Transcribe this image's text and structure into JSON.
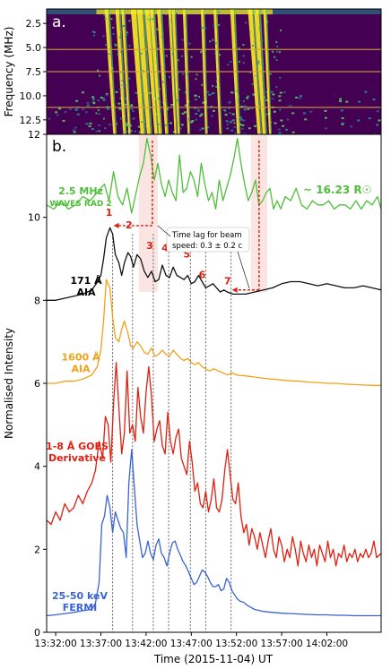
{
  "chart_data": [
    {
      "type": "heatmap",
      "panel_label": "a.",
      "ylabel": "Frequency (MHz)",
      "y_ticks": [
        "2.5",
        "5.0",
        "7.5",
        "10.0",
        "12.5"
      ],
      "y_tick_values": [
        2.5,
        5.0,
        7.5,
        10.0,
        12.5
      ],
      "ylim": [
        14.0,
        1.0
      ],
      "xlim_minutes_after_1331": [
        0,
        37
      ],
      "orange_line_frequencies": [
        5.2,
        7.5,
        11.2
      ],
      "colormap": {
        "low": "#440154",
        "mid1": "#3b528b",
        "mid2": "#21918c",
        "mid3": "#5ec962",
        "high": "#fde725"
      },
      "bursts_minutes": [
        {
          "t": 6.6,
          "len": 0.9,
          "w": 0.4
        },
        {
          "t": 7.8,
          "len": 0.8,
          "w": 0.4
        },
        {
          "t": 8.4,
          "len": 0.75,
          "w": 0.3
        },
        {
          "t": 9.6,
          "len": 1.0,
          "w": 0.6
        },
        {
          "t": 10.3,
          "len": 1.0,
          "w": 0.6
        },
        {
          "t": 11.1,
          "len": 1.0,
          "w": 0.5
        },
        {
          "t": 11.6,
          "len": 0.95,
          "w": 0.4
        },
        {
          "t": 12.4,
          "len": 0.85,
          "w": 0.4
        },
        {
          "t": 13.6,
          "len": 0.65,
          "w": 0.3
        },
        {
          "t": 14.0,
          "len": 0.6,
          "w": 0.3
        },
        {
          "t": 15.2,
          "len": 0.5,
          "w": 0.3
        },
        {
          "t": 17.2,
          "len": 0.45,
          "w": 0.3
        },
        {
          "t": 18.6,
          "len": 0.6,
          "w": 0.3
        },
        {
          "t": 20.5,
          "len": 0.7,
          "w": 0.4
        },
        {
          "t": 22.5,
          "len": 1.0,
          "w": 0.5
        },
        {
          "t": 23.2,
          "len": 0.85,
          "w": 0.5
        },
        {
          "t": 24.1,
          "len": 0.6,
          "w": 0.3
        }
      ]
    },
    {
      "type": "line",
      "panel_label": "b.",
      "xlabel": "Time (2015-11-04) UT",
      "ylabel": "Normalised Intensity",
      "x_ticks": [
        "13:32:00",
        "13:37:00",
        "13:42:00",
        "13:47:00",
        "13:52:00",
        "13:57:00",
        "14:02:00"
      ],
      "x_tick_minutes": [
        1,
        6,
        11,
        16,
        21,
        26,
        31
      ],
      "xlim_minutes_after_1331": [
        0,
        37
      ],
      "y_ticks": [
        "0",
        "2",
        "4",
        "6",
        "8",
        "10",
        "12"
      ],
      "ylim": [
        0,
        12
      ],
      "series": [
        {
          "name": "WAVES RAD 2",
          "label_lines": [
            "2.5 MHz",
            "WAVES RAD 2"
          ],
          "color": "#4fbf3a",
          "x": [
            0,
            0.8,
            1.6,
            2.4,
            3.2,
            4.0,
            4.8,
            5.6,
            6.4,
            6.9,
            7.4,
            7.9,
            8.4,
            8.9,
            9.4,
            9.9,
            10.3,
            10.7,
            11.1,
            11.5,
            11.9,
            12.3,
            12.7,
            13.1,
            13.5,
            13.9,
            14.3,
            14.7,
            15.1,
            15.5,
            15.9,
            16.3,
            16.7,
            17.1,
            17.5,
            17.9,
            18.3,
            18.7,
            19.1,
            19.5,
            19.9,
            20.3,
            20.7,
            21.1,
            21.5,
            21.9,
            22.3,
            22.7,
            23.1,
            23.5,
            23.9,
            24.3,
            24.7,
            25.1,
            25.5,
            25.9,
            26.4,
            27.0,
            27.6,
            28.2,
            28.8,
            29.4,
            30.0,
            30.6,
            31.2,
            31.8,
            32.4,
            33.0,
            33.6,
            34.2,
            34.8,
            35.4,
            36.0,
            36.6,
            37.0
          ],
          "values": [
            10.3,
            10.2,
            10.4,
            10.2,
            10.3,
            10.5,
            10.4,
            10.6,
            10.8,
            10.4,
            11.1,
            10.5,
            10.3,
            10.7,
            10.1,
            10.6,
            11.0,
            11.3,
            11.9,
            11.5,
            10.9,
            11.3,
            10.8,
            10.5,
            10.9,
            10.6,
            10.4,
            11.5,
            10.6,
            10.7,
            11.1,
            10.9,
            10.5,
            11.3,
            10.8,
            10.4,
            10.6,
            10.2,
            10.9,
            10.4,
            10.7,
            11.0,
            11.4,
            11.9,
            11.3,
            10.8,
            10.4,
            10.6,
            10.9,
            10.3,
            10.4,
            10.6,
            10.7,
            10.2,
            10.4,
            10.2,
            10.5,
            10.4,
            10.7,
            10.3,
            10.2,
            10.4,
            10.3,
            10.3,
            10.4,
            10.2,
            10.3,
            10.3,
            10.2,
            10.4,
            10.2,
            10.4,
            10.3,
            10.5,
            10.2
          ]
        },
        {
          "name": "AIA",
          "label_lines": [
            "171 Å",
            "AIA"
          ],
          "color": "#111111",
          "x": [
            0,
            1,
            2,
            3,
            4,
            5,
            5.5,
            6.0,
            6.3,
            6.6,
            7.0,
            7.3,
            7.6,
            8.0,
            8.3,
            8.6,
            9.0,
            9.3,
            9.6,
            10.0,
            10.4,
            10.8,
            11.2,
            11.6,
            12.0,
            12.4,
            12.8,
            13.2,
            13.6,
            14.0,
            14.4,
            14.8,
            15.2,
            15.6,
            16.0,
            16.4,
            16.8,
            17.2,
            17.6,
            18.0,
            18.4,
            18.8,
            19.2,
            19.6,
            20.0,
            20.6,
            21.2,
            22,
            23,
            24,
            25,
            26,
            27,
            28,
            29,
            30,
            31,
            32,
            33,
            34,
            35,
            36,
            37
          ],
          "values": [
            8.0,
            8.0,
            8.05,
            8.1,
            8.15,
            8.25,
            8.4,
            8.6,
            9.0,
            9.5,
            9.75,
            9.6,
            9.1,
            8.9,
            8.6,
            8.9,
            9.15,
            9.05,
            8.8,
            9.1,
            9.0,
            8.7,
            8.55,
            8.7,
            8.45,
            8.5,
            8.85,
            8.6,
            8.55,
            8.8,
            8.6,
            8.55,
            8.5,
            8.6,
            8.4,
            8.45,
            8.6,
            8.45,
            8.3,
            8.35,
            8.4,
            8.3,
            8.2,
            8.25,
            8.2,
            8.15,
            8.15,
            8.15,
            8.2,
            8.25,
            8.3,
            8.4,
            8.45,
            8.45,
            8.4,
            8.35,
            8.4,
            8.35,
            8.3,
            8.3,
            8.35,
            8.3,
            8.25
          ]
        },
        {
          "name": "AIA",
          "label_lines": [
            "1600 Å",
            "AIA"
          ],
          "color": "#f2a21a",
          "x": [
            0,
            1,
            2,
            3,
            4,
            5,
            5.6,
            6.0,
            6.3,
            6.6,
            7.0,
            7.3,
            7.6,
            8.0,
            8.3,
            8.6,
            9.0,
            9.3,
            9.6,
            10.0,
            10.4,
            10.8,
            11.2,
            11.6,
            12.0,
            12.4,
            12.8,
            13.2,
            13.6,
            14.0,
            14.4,
            14.8,
            15.2,
            15.6,
            16.0,
            16.4,
            16.8,
            17.2,
            17.6,
            18.0,
            18.5,
            19.0,
            19.5,
            20.0,
            20.5,
            21.0,
            22,
            23,
            24,
            25,
            26,
            27,
            28,
            29,
            30,
            31,
            32,
            33,
            34,
            35,
            36,
            37
          ],
          "values": [
            6.0,
            6.0,
            6.05,
            6.05,
            6.1,
            6.2,
            6.4,
            6.8,
            7.5,
            8.5,
            8.3,
            7.6,
            7.1,
            7.0,
            7.3,
            7.5,
            7.2,
            6.9,
            6.85,
            7.0,
            6.9,
            6.75,
            6.7,
            6.85,
            6.65,
            6.7,
            6.8,
            6.7,
            6.65,
            6.8,
            6.7,
            6.6,
            6.55,
            6.6,
            6.5,
            6.45,
            6.5,
            6.4,
            6.35,
            6.3,
            6.35,
            6.3,
            6.25,
            6.2,
            6.25,
            6.2,
            6.18,
            6.15,
            6.12,
            6.1,
            6.08,
            6.06,
            6.05,
            6.03,
            6.02,
            6.0,
            6.0,
            5.98,
            5.97,
            5.96,
            5.95,
            5.95
          ]
        },
        {
          "name": "GOES",
          "label_lines": [
            "1-8 Å GOES",
            "Derivative"
          ],
          "color": "#e01f10",
          "x": [
            0,
            0.5,
            1.0,
            1.5,
            2.0,
            2.5,
            3.0,
            3.5,
            4.0,
            4.5,
            5.0,
            5.4,
            5.8,
            6.2,
            6.5,
            6.8,
            7.1,
            7.4,
            7.7,
            8.0,
            8.3,
            8.6,
            8.9,
            9.2,
            9.5,
            9.8,
            10.1,
            10.4,
            10.7,
            11.0,
            11.3,
            11.6,
            11.9,
            12.2,
            12.5,
            12.8,
            13.1,
            13.4,
            13.7,
            14.0,
            14.3,
            14.6,
            14.9,
            15.2,
            15.5,
            15.8,
            16.1,
            16.4,
            16.7,
            17.0,
            17.3,
            17.6,
            17.9,
            18.2,
            18.5,
            18.8,
            19.1,
            19.4,
            19.7,
            20.0,
            20.3,
            20.6,
            20.9,
            21.2,
            21.5,
            21.8,
            22.1,
            22.4,
            22.7,
            23.0,
            23.3,
            23.6,
            23.9,
            24.2,
            24.5,
            24.8,
            25.1,
            25.4,
            25.7,
            26.0,
            26.3,
            26.6,
            26.9,
            27.2,
            27.5,
            27.8,
            28.1,
            28.4,
            28.7,
            29.0,
            29.3,
            29.6,
            29.9,
            30.2,
            30.5,
            30.8,
            31.1,
            31.4,
            31.7,
            32.0,
            32.3,
            32.6,
            32.9,
            33.2,
            33.5,
            33.8,
            34.1,
            34.4,
            34.7,
            35.0,
            35.3,
            35.6,
            35.9,
            36.2,
            36.5,
            37.0
          ],
          "values": [
            2.7,
            2.6,
            2.9,
            2.7,
            3.1,
            2.9,
            3.0,
            3.3,
            3.1,
            3.4,
            3.6,
            3.9,
            4.6,
            4.2,
            5.2,
            5.0,
            4.1,
            5.5,
            6.5,
            5.4,
            4.3,
            4.8,
            6.3,
            4.8,
            5.0,
            4.6,
            5.9,
            5.2,
            4.8,
            5.8,
            6.4,
            5.7,
            4.6,
            4.9,
            5.1,
            4.5,
            4.3,
            5.3,
            4.6,
            4.3,
            4.7,
            4.9,
            4.2,
            4.0,
            3.8,
            4.6,
            4.1,
            3.4,
            3.6,
            3.1,
            3.0,
            3.4,
            2.9,
            3.2,
            3.7,
            3.0,
            2.9,
            3.2,
            3.9,
            4.4,
            3.8,
            3.2,
            3.1,
            3.6,
            2.8,
            2.4,
            2.6,
            2.1,
            2.5,
            2.3,
            2.0,
            2.4,
            2.1,
            1.8,
            2.2,
            2.5,
            2.0,
            1.8,
            2.3,
            2.1,
            1.7,
            2.0,
            1.8,
            2.3,
            2.0,
            1.6,
            2.2,
            1.9,
            1.7,
            2.1,
            1.8,
            2.0,
            1.6,
            2.1,
            1.9,
            1.7,
            2.2,
            1.8,
            2.0,
            1.6,
            1.9,
            1.8,
            2.1,
            1.7,
            1.9,
            1.8,
            2.0,
            1.7,
            1.9,
            1.8,
            2.0,
            1.8,
            1.9,
            2.2,
            1.8,
            1.9
          ]
        },
        {
          "name": "FERMI",
          "label_lines": [
            "25-50 keV",
            "FERMI"
          ],
          "color": "#3a63d4",
          "x": [
            0,
            1,
            2,
            3,
            4,
            5,
            5.4,
            5.8,
            6.1,
            6.4,
            6.7,
            7.0,
            7.3,
            7.6,
            7.9,
            8.2,
            8.5,
            8.8,
            9.1,
            9.4,
            9.7,
            10.0,
            10.3,
            10.6,
            10.9,
            11.2,
            11.5,
            11.8,
            12.1,
            12.4,
            12.7,
            13.0,
            13.3,
            13.6,
            13.9,
            14.2,
            14.5,
            14.8,
            15.1,
            15.4,
            15.7,
            16.0,
            16.3,
            16.6,
            16.9,
            17.2,
            17.5,
            17.8,
            18.1,
            18.4,
            18.7,
            19.0,
            19.3,
            19.6,
            19.9,
            20.2,
            20.5,
            20.8,
            21.1,
            21.4,
            21.8,
            22.2,
            22.6,
            23.0,
            24,
            25,
            26,
            27,
            28,
            29,
            30,
            31,
            32,
            33,
            34,
            35,
            36,
            37
          ],
          "values": [
            0.4,
            0.42,
            0.45,
            0.48,
            0.52,
            0.55,
            0.7,
            1.2,
            2.6,
            2.8,
            3.3,
            3.0,
            2.4,
            2.9,
            2.7,
            2.5,
            2.4,
            1.8,
            3.6,
            4.4,
            3.5,
            2.6,
            2.2,
            1.8,
            1.9,
            2.2,
            1.9,
            1.75,
            2.1,
            2.25,
            1.9,
            1.8,
            1.6,
            1.9,
            2.15,
            2.2,
            2.0,
            1.85,
            1.7,
            1.6,
            1.45,
            1.3,
            1.15,
            1.2,
            1.35,
            1.5,
            1.45,
            1.35,
            1.2,
            1.1,
            1.1,
            1.15,
            1.0,
            1.05,
            1.3,
            1.2,
            1.0,
            0.9,
            0.8,
            0.75,
            0.72,
            0.65,
            0.6,
            0.55,
            0.5,
            0.48,
            0.46,
            0.45,
            0.44,
            0.43,
            0.42,
            0.42,
            0.41,
            0.41,
            0.4,
            0.4,
            0.4,
            0.4
          ]
        }
      ],
      "peak_labels": [
        "1",
        "2",
        "3",
        "4",
        "5",
        "6",
        "7"
      ],
      "peak_minutes": [
        7.3,
        9.5,
        11.8,
        13.5,
        15.9,
        17.6,
        20.4
      ],
      "peak_label_values": [
        9.95,
        9.65,
        9.15,
        9.1,
        8.95,
        8.45,
        8.3
      ],
      "shaded_regions_minutes": [
        [
          10.2,
          12.3
        ],
        [
          22.6,
          24.4
        ]
      ],
      "radio_label": "~ 16.23 R☉",
      "lag_arrow_1": {
        "x_start": 7.4,
        "x_end": 11.7,
        "y_top": 11.85,
        "y_bottom": 9.8
      },
      "lag_arrow_2": {
        "x_start": 20.5,
        "x_end": 23.5,
        "y_top": 11.85,
        "y_bottom": 8.25
      },
      "annotation_lines": [
        "Time lag for beam",
        "speed: 0.3 ± 0.2 c"
      ]
    }
  ]
}
